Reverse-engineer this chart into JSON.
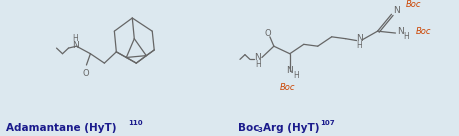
{
  "background_color": "#dce8ef",
  "fig_width": 4.59,
  "fig_height": 1.36,
  "label_left": "Adamantane (HyT)",
  "label_left_super": "110",
  "label_right_pre": "Boc",
  "label_right_sub": "3",
  "label_right_post": "Arg (HyT)",
  "label_right_super": "107",
  "label_fontsize": 7.5,
  "label_color": "#1a1a8c",
  "structure_color": "#666666",
  "boc_color": "#cc4400",
  "lw": 0.9
}
